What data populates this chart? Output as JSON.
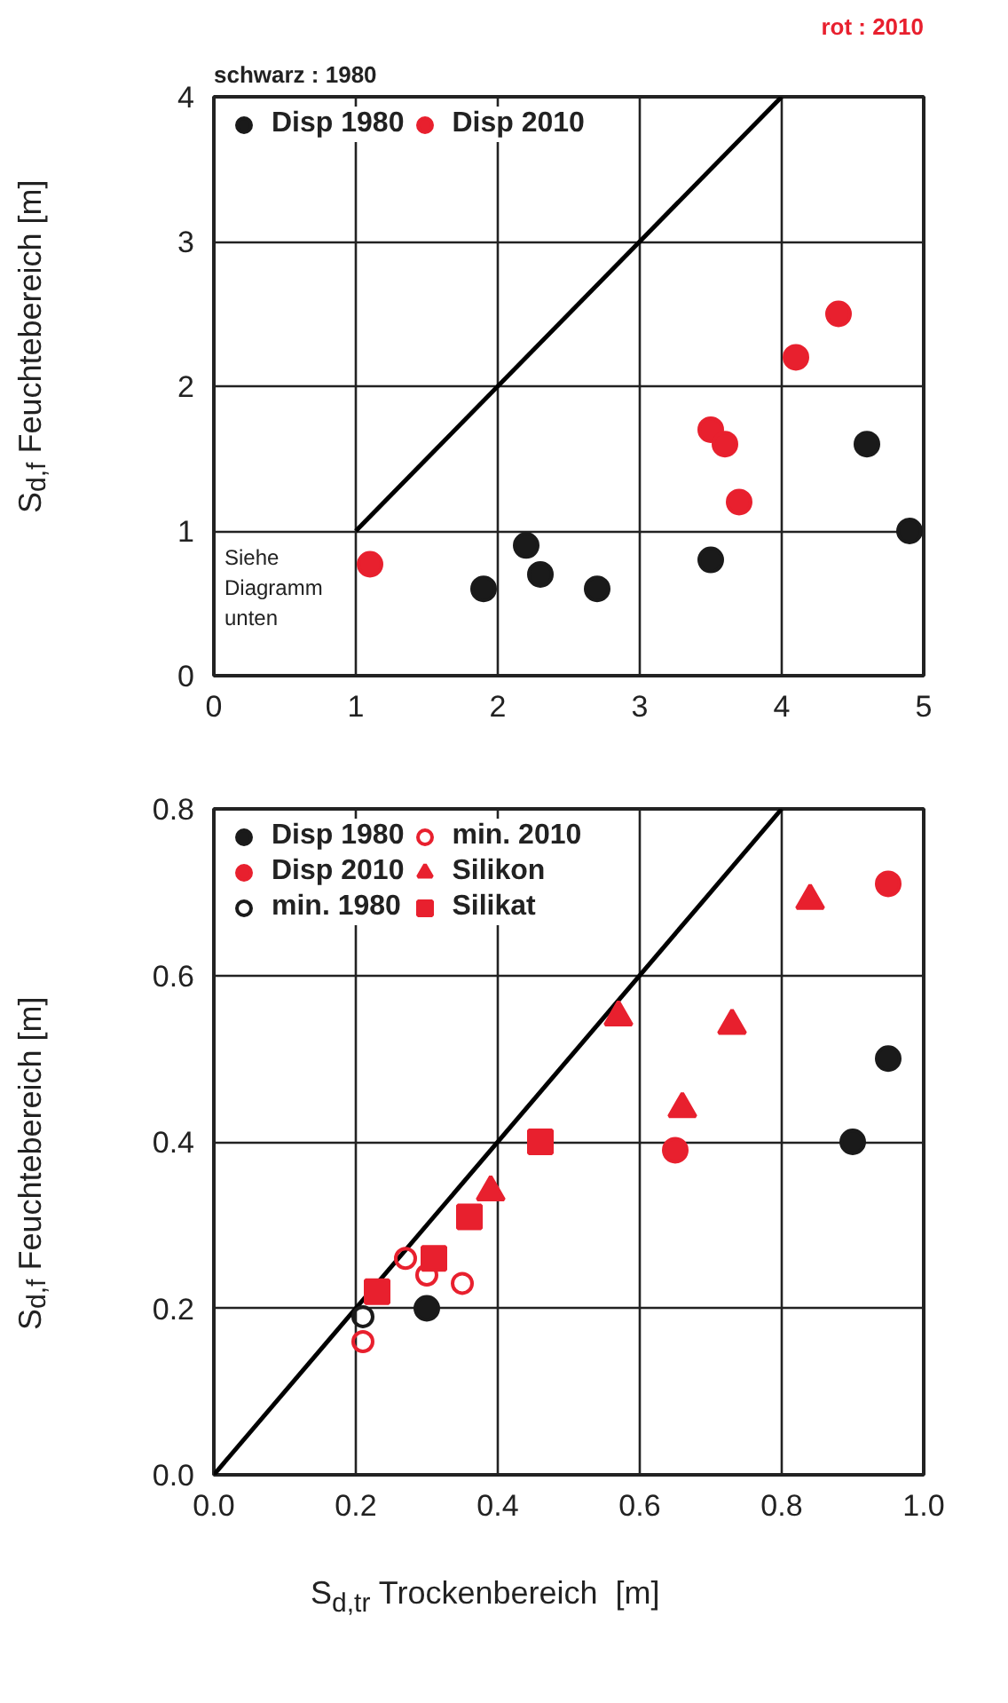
{
  "chart_data": [
    {
      "type": "scatter",
      "ylabel": "S$_{d,f}$ Feuchtebereich [m]",
      "annotations": [
        "schwarz : 1980",
        "rot : 2010",
        "Siehe Diagramm unten"
      ],
      "xlim": [
        0,
        5
      ],
      "ylim": [
        0,
        4
      ],
      "xticks": [
        0,
        1,
        2,
        3,
        4,
        5
      ],
      "yticks": [
        0,
        1,
        2,
        3,
        4
      ],
      "grid": true,
      "legend": "top left",
      "series": [
        {
          "type": "line",
          "color": "#000000",
          "x": [
            1,
            4
          ],
          "values": [
            1,
            4
          ]
        },
        {
          "name": "Disp 1980",
          "color": "#1a1a1a",
          "marker": "circle",
          "x": [
            1.9,
            2.2,
            2.3,
            2.7,
            3.5,
            4.6,
            4.9
          ],
          "values": [
            0.6,
            0.9,
            0.7,
            0.6,
            0.8,
            1.6,
            1.0
          ]
        },
        {
          "name": "Disp 2010",
          "color": "#e8202e",
          "marker": "circle",
          "x": [
            1.1,
            3.5,
            3.6,
            3.7,
            4.1,
            4.4
          ],
          "values": [
            0.77,
            1.7,
            1.6,
            1.2,
            2.2,
            2.5
          ]
        }
      ]
    },
    {
      "type": "scatter",
      "xlabel": "S$_{d,tr}$ Trockenbereich  [m]",
      "ylabel": "S$_{d,f}$ Feuchtebereich [m]",
      "xlim": [
        0,
        1
      ],
      "ylim": [
        0,
        0.8
      ],
      "xticks": [
        {
          "value": 0,
          "label": "0.0"
        },
        0.2,
        0.4,
        0.6,
        0.8,
        {
          "value": 1,
          "label": "1.0"
        }
      ],
      "yticks": [
        {
          "value": 0,
          "label": "0.0"
        },
        0.2,
        0.4,
        0.6,
        0.8
      ],
      "grid": true,
      "legend": "top left",
      "series": [
        {
          "type": "line",
          "color": "#000000",
          "x": [
            0,
            0.8
          ],
          "values": [
            0,
            0.8
          ]
        },
        {
          "name": "Disp 1980",
          "color": "#1a1a1a",
          "marker": "circle",
          "x": [
            0.3,
            0.9,
            0.95
          ],
          "values": [
            0.2,
            0.4,
            0.5
          ]
        },
        {
          "name": "Disp 2010",
          "color": "#e8202e",
          "marker": "circle",
          "x": [
            0.65,
            0.95
          ],
          "values": [
            0.39,
            0.71
          ]
        },
        {
          "name": "min. 1980",
          "color": "#1a1a1a",
          "marker": "circle-open",
          "x": [
            0.21
          ],
          "values": [
            0.19
          ]
        },
        {
          "name": "min. 2010",
          "color": "#e8202e",
          "marker": "circle-open",
          "x": [
            0.21,
            0.27,
            0.3,
            0.35
          ],
          "values": [
            0.16,
            0.26,
            0.24,
            0.23
          ]
        },
        {
          "name": "Silikon",
          "color": "#e8202e",
          "marker": "triangle",
          "x": [
            0.39,
            0.57,
            0.66,
            0.73,
            0.84
          ],
          "values": [
            0.34,
            0.55,
            0.44,
            0.54,
            0.69
          ]
        },
        {
          "name": "Silikat",
          "color": "#e8202e",
          "marker": "square",
          "x": [
            0.23,
            0.31,
            0.36,
            0.46
          ],
          "values": [
            0.22,
            0.26,
            0.31,
            0.4
          ]
        }
      ]
    }
  ]
}
